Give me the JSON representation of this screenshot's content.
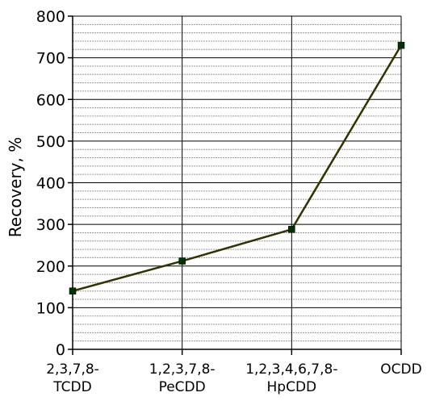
{
  "chart_data": {
    "type": "line",
    "ylabel": "Recovery, %",
    "xlabel": "",
    "categories": [
      [
        "2,3,7,8-",
        "TCDD"
      ],
      [
        "1,2,3,7,8-",
        "PeCDD"
      ],
      [
        "1,2,3,4,6,7,8-",
        "HpCDD"
      ],
      [
        "OCDD"
      ]
    ],
    "series": [
      {
        "values": [
          140,
          212,
          288,
          730
        ]
      }
    ],
    "ylim": [
      0,
      800
    ],
    "y_ticks": [
      "0",
      "100",
      "200",
      "300",
      "400",
      "500",
      "600",
      "700",
      "800"
    ],
    "y_major_step": 100,
    "y_minor_step": 20,
    "grid": true,
    "line_color": "#333300",
    "marker_color": "#003300"
  }
}
